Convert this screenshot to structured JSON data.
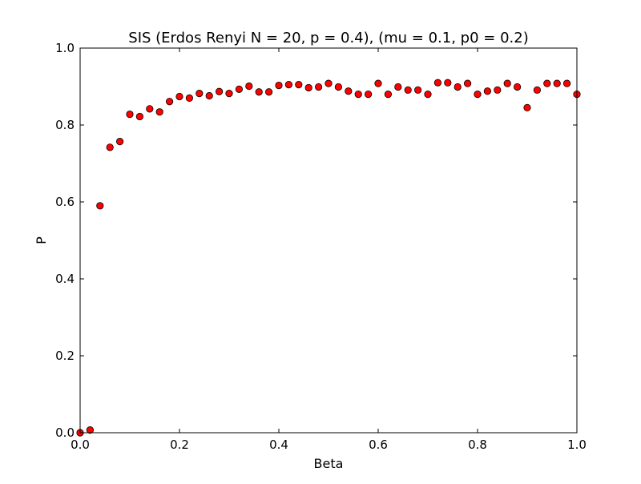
{
  "chart_data": {
    "type": "scatter",
    "title": "SIS (Erdos Renyi N = 20, p = 0.4), (mu = 0.1, p0 = 0.2)",
    "xlabel": "Beta",
    "ylabel": "P",
    "xlim": [
      0.0,
      1.0
    ],
    "ylim": [
      0.0,
      1.0
    ],
    "xticks": [
      "0.0",
      "0.2",
      "0.4",
      "0.6",
      "0.8",
      "1.0"
    ],
    "yticks": [
      "0.0",
      "0.2",
      "0.4",
      "0.6",
      "0.8",
      "1.0"
    ],
    "grid": false,
    "marker_color": "#ff0000",
    "marker_edge_color": "#000000",
    "x": [
      0.0,
      0.02,
      0.04,
      0.06,
      0.08,
      0.1,
      0.12,
      0.14,
      0.16,
      0.18,
      0.2,
      0.22,
      0.24,
      0.26,
      0.28,
      0.3,
      0.32,
      0.34,
      0.36,
      0.38,
      0.4,
      0.42,
      0.44,
      0.46,
      0.48,
      0.5,
      0.52,
      0.54,
      0.56,
      0.58,
      0.6,
      0.62,
      0.64,
      0.66,
      0.68,
      0.7,
      0.72,
      0.74,
      0.76,
      0.78,
      0.8,
      0.82,
      0.84,
      0.86,
      0.88,
      0.9,
      0.92,
      0.94,
      0.96,
      0.98,
      1.0
    ],
    "y": [
      0.0,
      0.007,
      0.59,
      0.742,
      0.757,
      0.828,
      0.822,
      0.842,
      0.834,
      0.861,
      0.874,
      0.87,
      0.882,
      0.876,
      0.887,
      0.882,
      0.893,
      0.901,
      0.886,
      0.886,
      0.903,
      0.905,
      0.905,
      0.897,
      0.899,
      0.908,
      0.899,
      0.888,
      0.88,
      0.88,
      0.908,
      0.88,
      0.899,
      0.891,
      0.891,
      0.88,
      0.91,
      0.91,
      0.899,
      0.908,
      0.88,
      0.888,
      0.891,
      0.908,
      0.899,
      0.845,
      0.891,
      0.908,
      0.908,
      0.908,
      0.88
    ]
  }
}
